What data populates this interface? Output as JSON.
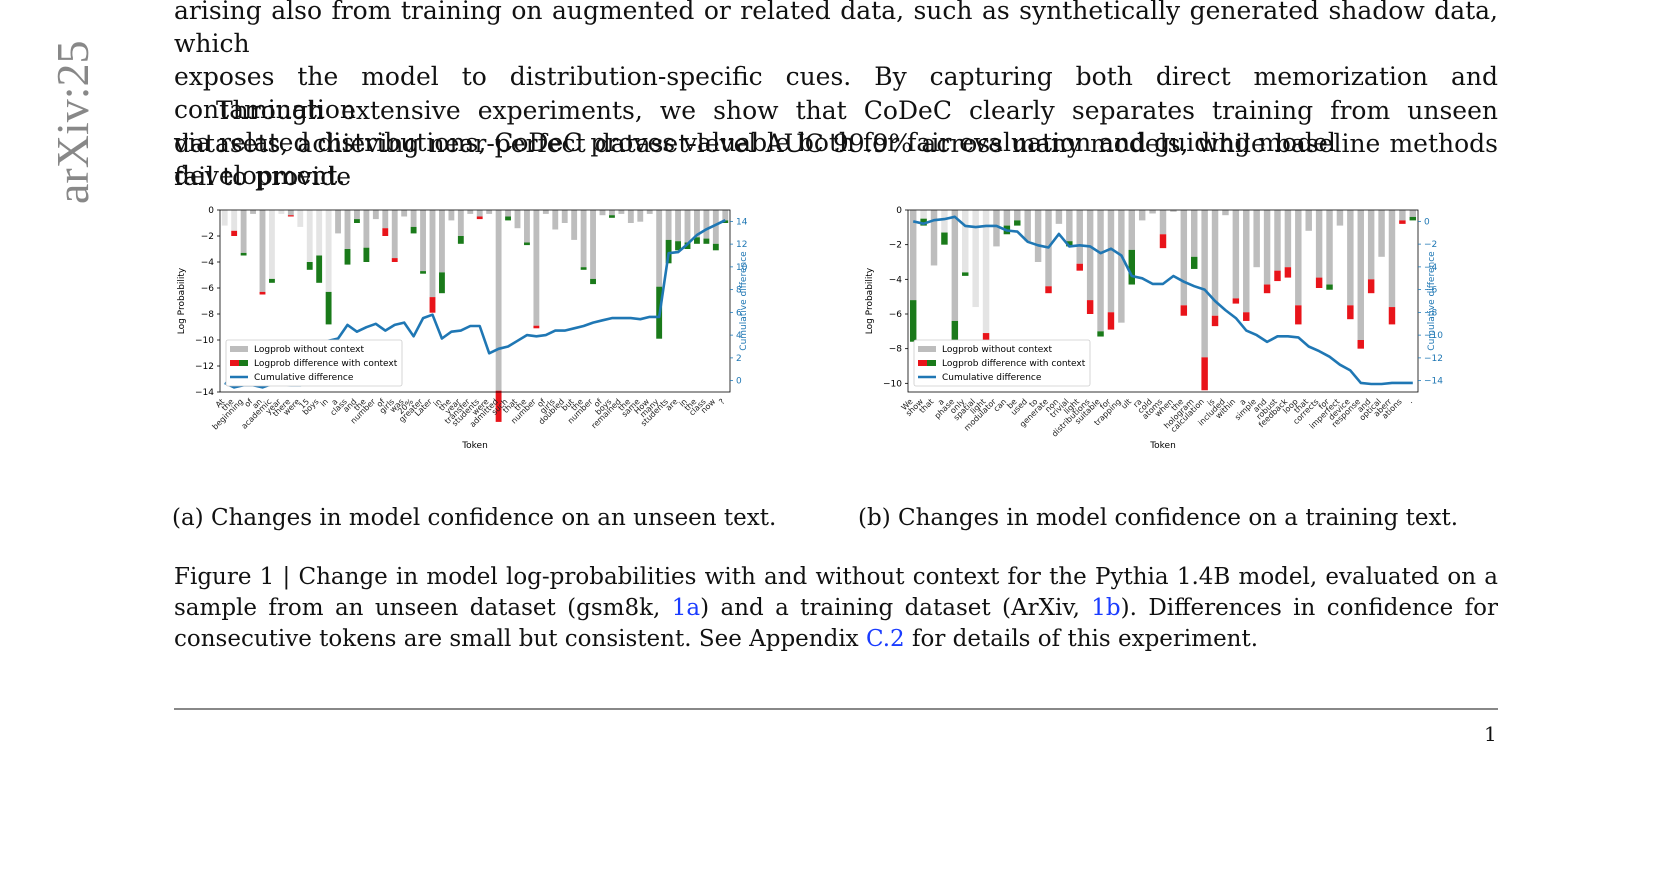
{
  "arxiv_watermark": "arXiv:25",
  "para1_lines": [
    "arising also from training on augmented or related data, such as synthetically generated shadow data, which",
    "exposes the model to distribution-specific cues. By capturing both direct memorization and contamination",
    "via related distributions, CoDeC proves valuable both for fair evaluation and guiding model development."
  ],
  "para2": "Through extensive experiments, we show that CoDeC clearly separates training from unseen datasets, achieving near-perfect dataset-level AUC 99.9% across many models, while baseline methods fail to provide",
  "subcaption_a": "(a) Changes in model confidence on an unseen text.",
  "subcaption_b": "(b) Changes in model confidence on a training text.",
  "caption": {
    "part1": "Figure 1 | Change in model log-probabilities with and without context for the Pythia 1.4B model, evaluated on a sample from an unseen dataset (gsm8k, ",
    "ref1": "1a",
    "part2": ") and a training dataset (ArXiv, ",
    "ref2": "1b",
    "part3": "). Differences in confidence for consecutive tokens are small but consistent. See Appendix ",
    "ref3": "C.2",
    "part4": " for details of this experiment."
  },
  "page_number": "1",
  "colors": {
    "gray_bar": "#bdbdbd",
    "light_bar": "#e4e4e4",
    "pos": "#1a7a1a",
    "neg": "#e8141a",
    "line": "#1f77b4"
  },
  "chart_data": [
    {
      "type": "bar",
      "xlabel": "Token",
      "ylabel": "Log Probability",
      "y2label": "Cumulative difference",
      "ylim": [
        -14,
        0
      ],
      "y2lim": [
        -1,
        15
      ],
      "yticks": [
        0,
        -2,
        -4,
        -6,
        -8,
        -10,
        -12,
        -14
      ],
      "y2ticks": [
        0,
        2,
        4,
        6,
        8,
        10,
        12,
        14
      ],
      "legend_position": "lower-left",
      "legend": [
        "Logprob without context",
        "Logprob difference with context",
        "Cumulative difference"
      ],
      "categories": [
        "At",
        "the",
        "beginning",
        "of",
        "an",
        "academic",
        "year",
        "there",
        "were",
        "15",
        "boys",
        "in",
        "a",
        "class",
        "and",
        "the",
        "number",
        "of",
        "girls",
        "was",
        "20%",
        "greater",
        "Later",
        "in",
        "the",
        "year",
        "transfer",
        "students",
        "were",
        "admitted",
        "such",
        "that",
        "the",
        "number",
        "of",
        "girls",
        "doubled",
        "but",
        "the",
        "number",
        "of",
        "boys",
        "remained",
        "the",
        "same",
        "How",
        "many",
        "students",
        "are",
        "in",
        "the",
        "class",
        "now",
        "?"
      ],
      "series": [
        {
          "name": "Logprob without context",
          "values": [
            -1.2,
            -1.6,
            -3.3,
            -0.3,
            -6.3,
            -5.3,
            -0.3,
            -0.4,
            -1.3,
            -4.0,
            -3.5,
            -6.3,
            -1.8,
            -3.0,
            -0.7,
            -2.9,
            -0.7,
            -1.4,
            -3.7,
            -0.5,
            -1.3,
            -4.7,
            -6.7,
            -4.8,
            -0.8,
            -2.0,
            -0.3,
            -0.5,
            -0.3,
            -13.9,
            -0.5,
            -1.4,
            -2.5,
            -8.9,
            -0.3,
            -1.5,
            -1.0,
            -2.3,
            -4.4,
            -5.3,
            -0.4,
            -0.4,
            -0.3,
            -1.0,
            -0.9,
            -0.3,
            -5.9,
            -2.3,
            -2.4,
            -2.5,
            -2.1,
            -2.2,
            -2.6,
            -0.8
          ]
        },
        {
          "name": "Logprob difference with context",
          "values": [
            0,
            -0.4,
            0.2,
            0,
            -0.2,
            0.3,
            0,
            -0.1,
            0,
            0.6,
            2.1,
            2.5,
            0,
            1.2,
            0.3,
            1.1,
            0,
            -0.6,
            -0.3,
            0,
            0.5,
            0.2,
            -1.2,
            1.6,
            0,
            0.6,
            0,
            -0.2,
            0,
            -2.4,
            0.3,
            0,
            0.2,
            -0.2,
            0,
            0,
            0,
            0,
            0.2,
            0.4,
            0,
            0.2,
            0,
            0,
            0,
            0,
            4.0,
            1.8,
            0.7,
            0.5,
            0.5,
            0.4,
            0.5,
            0.2
          ]
        },
        {
          "name": "Cumulative difference",
          "values": [
            -0.2,
            -0.6,
            -0.4,
            -0.4,
            -0.6,
            -0.3,
            -0.3,
            -0.4,
            -0.4,
            0.2,
            2.3,
            3.5,
            3.7,
            4.9,
            4.3,
            4.7,
            5.0,
            4.4,
            4.9,
            5.1,
            3.9,
            5.5,
            5.8,
            3.7,
            4.3,
            4.4,
            4.8,
            4.8,
            2.4,
            2.8,
            3.0,
            3.5,
            4.0,
            3.9,
            4.0,
            4.4,
            4.4,
            4.6,
            4.8,
            5.1,
            5.3,
            5.5,
            5.5,
            5.5,
            5.4,
            5.6,
            5.6,
            11.2,
            11.3,
            12.0,
            12.8,
            13.3,
            13.7,
            14.1
          ]
        }
      ]
    },
    {
      "type": "bar",
      "xlabel": "Token",
      "ylabel": "Log Probability",
      "y2label": "Cumulative difference",
      "ylim": [
        -10.5,
        0
      ],
      "y2lim": [
        -15,
        1
      ],
      "yticks": [
        0,
        -2,
        -4,
        -6,
        -8,
        -10
      ],
      "y2ticks": [
        0,
        -2,
        -4,
        -6,
        -8,
        -10,
        -12,
        -14
      ],
      "legend_position": "lower-left",
      "legend": [
        "Logprob without context",
        "Logprob difference with context",
        "Cumulative difference"
      ],
      "categories": [
        "We",
        "show",
        "that",
        "a",
        "phase",
        "only",
        "spatial",
        "light",
        "modulator",
        "can",
        "be",
        "used",
        "to",
        "generate",
        "non",
        "trivial",
        "light",
        "distributions",
        "suitable",
        "for",
        "trapping",
        "ult",
        "ra",
        "cold",
        "atoms",
        "when",
        "the",
        "hologram",
        "calculation",
        "is",
        "included",
        "within",
        "a",
        "simple",
        "and",
        "robust",
        "feedback",
        "loop",
        "that",
        "corrects",
        "for",
        "imperfect",
        "device",
        "response",
        "and",
        "optical",
        "aberr",
        "ations",
        "."
      ],
      "series": [
        {
          "name": "Logprob without context",
          "values": [
            -5.2,
            -0.5,
            -3.2,
            -1.3,
            -6.4,
            -3.6,
            -5.6,
            -7.1,
            -2.1,
            -0.9,
            -0.6,
            -1.8,
            -3.0,
            -4.4,
            -0.8,
            -1.8,
            -3.1,
            -5.2,
            -7.0,
            -5.9,
            -6.5,
            -2.3,
            -0.6,
            -0.2,
            -1.4,
            -0.1,
            -5.5,
            -2.7,
            -8.5,
            -6.1,
            -0.3,
            -5.1,
            -5.9,
            -3.3,
            -4.3,
            -3.5,
            -3.3,
            -5.5,
            -1.2,
            -3.9,
            -4.3,
            -0.9,
            -5.5,
            -7.5,
            -4.0,
            -2.7,
            -5.6,
            -0.6,
            -0.4
          ]
        },
        {
          "name": "Logprob difference with context",
          "values": [
            2.4,
            0.4,
            0,
            0.7,
            1.5,
            0.2,
            0,
            -1.8,
            0,
            0.5,
            0.3,
            0,
            0,
            -0.4,
            0,
            0.3,
            -0.4,
            -0.8,
            0.3,
            -1.0,
            0,
            2.0,
            0,
            0,
            -0.8,
            0,
            -0.6,
            0.7,
            -1.9,
            -0.6,
            0,
            -0.3,
            -0.5,
            0,
            -0.5,
            -0.6,
            -0.6,
            -1.1,
            0,
            -0.6,
            0.3,
            0,
            -0.8,
            -0.5,
            -0.8,
            0,
            -1.0,
            -0.2,
            0.2
          ]
        },
        {
          "name": "Cumulative difference",
          "values": [
            0,
            -0.2,
            0.1,
            0.2,
            0.4,
            -0.4,
            -0.5,
            -0.4,
            -0.4,
            -0.8,
            -0.9,
            -1.8,
            -2.1,
            -2.3,
            -1.1,
            -2.2,
            -2.1,
            -2.2,
            -2.8,
            -2.4,
            -3.0,
            -4.8,
            -5.0,
            -5.5,
            -5.5,
            -4.8,
            -5.3,
            -5.7,
            -6.0,
            -7.0,
            -7.8,
            -8.5,
            -9.6,
            -10.0,
            -10.6,
            -10.1,
            -10.1,
            -10.2,
            -11.0,
            -11.4,
            -11.9,
            -12.6,
            -13.1,
            -14.2,
            -14.3,
            -14.3,
            -14.2,
            -14.2,
            -14.2
          ]
        }
      ]
    }
  ]
}
